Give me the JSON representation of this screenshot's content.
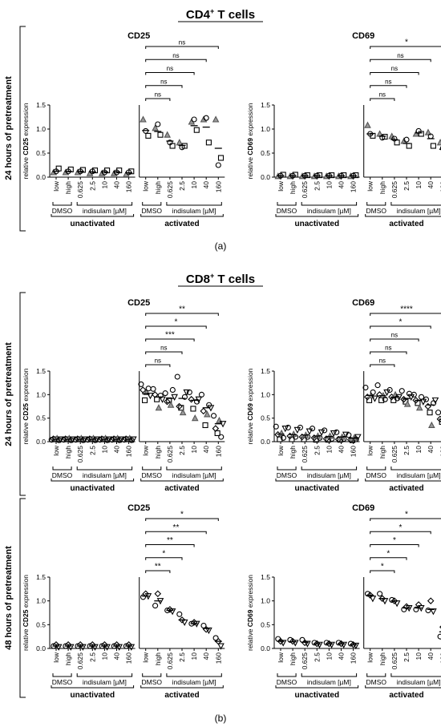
{
  "figure": {
    "panel_a_title": "CD4",
    "panel_a_title_sup": "+",
    "panel_a_title_rest": " T cells",
    "panel_b_title": "CD8",
    "panel_b_title_sup": "+",
    "panel_b_title_rest": " T cells",
    "label_a": "(a)",
    "label_b": "(b)",
    "row_label_24": "24 hours of pretreatment",
    "row_label_48": "48 hours of pretreatment"
  },
  "x_labels": {
    "categories": [
      "low",
      "high",
      "0.625",
      "2.5",
      "10",
      "40",
      "160"
    ],
    "dmso": "DMSO",
    "indisulam": "indisulam [µM]",
    "unactivated": "unactivated",
    "activated": "activated"
  },
  "chart_data": [
    {
      "id": "cd4-24h-cd25",
      "type": "scatter",
      "title": "CD25",
      "ylabel_pre": "relative ",
      "ylabel_bold": "CD25",
      "ylabel_post": " expression",
      "ylim": [
        0,
        1.5
      ],
      "yticks": [
        "0.0",
        "0.5",
        "1.0",
        "1.5"
      ],
      "markers": [
        "triangle",
        "circle",
        "square"
      ],
      "unactivated": {
        "means": [
          0.12,
          0.12,
          0.12,
          0.11,
          0.11,
          0.11,
          0.09
        ],
        "points": [
          [
            0.1,
            0.12,
            0.18
          ],
          [
            0.1,
            0.12,
            0.16
          ],
          [
            0.1,
            0.12,
            0.15
          ],
          [
            0.08,
            0.12,
            0.14
          ],
          [
            0.08,
            0.1,
            0.14
          ],
          [
            0.08,
            0.1,
            0.14
          ],
          [
            0.06,
            0.1,
            0.12
          ]
        ]
      },
      "activated": {
        "means": [
          0.97,
          0.95,
          0.75,
          0.66,
          1.07,
          1.04,
          0.6
        ],
        "points": [
          [
            1.2,
            0.96,
            0.86
          ],
          [
            1.02,
            1.1,
            0.88
          ],
          [
            0.88,
            0.72,
            0.65
          ],
          [
            0.72,
            0.62,
            0.65
          ],
          [
            1.15,
            1.2,
            0.98
          ],
          [
            1.2,
            1.23,
            0.72
          ],
          [
            1.2,
            0.25,
            0.4
          ]
        ]
      },
      "significance": [
        {
          "to": 1,
          "label": "ns"
        },
        {
          "to": 2,
          "label": "ns"
        },
        {
          "to": 3,
          "label": "ns"
        },
        {
          "to": 4,
          "label": "ns"
        },
        {
          "to": 5,
          "label": "ns"
        }
      ]
    },
    {
      "id": "cd4-24h-cd69",
      "type": "scatter",
      "title": "CD69",
      "ylabel_pre": "relative ",
      "ylabel_bold": "CD69",
      "ylabel_post": " expression",
      "ylim": [
        0,
        1.5
      ],
      "yticks": [
        "0.0",
        "0.5",
        "1.0",
        "1.5"
      ],
      "markers": [
        "triangle",
        "circle",
        "square"
      ],
      "unactivated": {
        "means": [
          0.03,
          0.03,
          0.03,
          0.03,
          0.03,
          0.03,
          0.03
        ],
        "points": [
          [
            0.02,
            0.03,
            0.05
          ],
          [
            0.02,
            0.03,
            0.05
          ],
          [
            0.02,
            0.03,
            0.04
          ],
          [
            0.02,
            0.03,
            0.04
          ],
          [
            0.02,
            0.03,
            0.04
          ],
          [
            0.02,
            0.03,
            0.04
          ],
          [
            0.02,
            0.03,
            0.04
          ]
        ]
      },
      "activated": {
        "means": [
          0.9,
          0.85,
          0.78,
          0.7,
          0.92,
          0.8,
          0.58
        ],
        "points": [
          [
            1.08,
            0.9,
            0.86
          ],
          [
            0.9,
            0.82,
            0.84
          ],
          [
            0.85,
            0.8,
            0.72
          ],
          [
            0.75,
            0.78,
            0.65
          ],
          [
            0.9,
            0.96,
            0.9
          ],
          [
            0.93,
            0.85,
            0.65
          ],
          [
            0.72,
            0.6,
            0.38
          ]
        ]
      },
      "significance": [
        {
          "to": 1,
          "label": "ns"
        },
        {
          "to": 2,
          "label": "ns"
        },
        {
          "to": 3,
          "label": "ns"
        },
        {
          "to": 4,
          "label": "ns"
        },
        {
          "to": 5,
          "label": "*"
        }
      ]
    },
    {
      "id": "cd8-24h-cd25",
      "type": "scatter",
      "title": "CD25",
      "ylabel_pre": "relative ",
      "ylabel_bold": "CD25",
      "ylabel_post": " expression",
      "ylim": [
        0,
        1.5
      ],
      "yticks": [
        "0.0",
        "0.5",
        "1.0",
        "1.5"
      ],
      "markers": [
        "circle",
        "diamond",
        "square",
        "triangle",
        "circle",
        "triangle-down"
      ],
      "unactivated": {
        "means": [
          0.05,
          0.05,
          0.05,
          0.05,
          0.05,
          0.05,
          0.05
        ],
        "points": [
          [
            0.04,
            0.06,
            0.05,
            0.07,
            0.03,
            0.05
          ],
          [
            0.04,
            0.06,
            0.05,
            0.07,
            0.03,
            0.05
          ],
          [
            0.04,
            0.06,
            0.05,
            0.07,
            0.03,
            0.05
          ],
          [
            0.04,
            0.06,
            0.05,
            0.07,
            0.03,
            0.05
          ],
          [
            0.04,
            0.06,
            0.05,
            0.07,
            0.03,
            0.05
          ],
          [
            0.04,
            0.06,
            0.05,
            0.07,
            0.03,
            0.05
          ],
          [
            0.04,
            0.06,
            0.05,
            0.07,
            0.03,
            0.05
          ]
        ]
      },
      "activated": {
        "means": [
          1.02,
          0.95,
          0.92,
          0.92,
          0.88,
          0.72,
          0.38
        ],
        "points": [
          [
            1.22,
            1.1,
            0.88,
            1.05,
            1.13,
            0.98
          ],
          [
            1.12,
            1.0,
            0.9,
            0.72,
            0.98,
            0.9
          ],
          [
            1.03,
            0.85,
            0.88,
            0.78,
            1.1,
            0.95
          ],
          [
            1.38,
            0.75,
            0.72,
            0.62,
            0.95,
            1.05
          ],
          [
            1.05,
            0.9,
            0.7,
            0.5,
            0.85,
            0.9
          ],
          [
            1.0,
            0.65,
            0.35,
            0.58,
            0.78,
            0.72
          ],
          [
            0.55,
            0.28,
            0.18,
            0.45,
            0.1,
            0.38
          ]
        ]
      },
      "significance": [
        {
          "to": 1,
          "label": "ns"
        },
        {
          "to": 2,
          "label": "ns"
        },
        {
          "to": 3,
          "label": "***"
        },
        {
          "to": 4,
          "label": "*"
        },
        {
          "to": 5,
          "label": "**"
        }
      ]
    },
    {
      "id": "cd8-24h-cd69",
      "type": "scatter",
      "title": "CD69",
      "ylabel_pre": "relative ",
      "ylabel_bold": "CD69",
      "ylabel_post": " expression",
      "ylim": [
        0,
        1.5
      ],
      "yticks": [
        "0.0",
        "0.5",
        "1.0",
        "1.5"
      ],
      "markers": [
        "circle",
        "diamond",
        "square",
        "triangle",
        "circle",
        "triangle-down"
      ],
      "unactivated": {
        "means": [
          0.16,
          0.15,
          0.14,
          0.12,
          0.11,
          0.1,
          0.07
        ],
        "points": [
          [
            0.32,
            0.15,
            0.05,
            0.18,
            0.08,
            0.28
          ],
          [
            0.3,
            0.12,
            0.05,
            0.16,
            0.1,
            0.25
          ],
          [
            0.3,
            0.1,
            0.05,
            0.14,
            0.1,
            0.22
          ],
          [
            0.28,
            0.08,
            0.04,
            0.12,
            0.08,
            0.2
          ],
          [
            0.24,
            0.06,
            0.04,
            0.12,
            0.06,
            0.18
          ],
          [
            0.2,
            0.05,
            0.04,
            0.1,
            0.06,
            0.15
          ],
          [
            0.14,
            0.04,
            0.03,
            0.08,
            0.05,
            0.1
          ]
        ]
      },
      "activated": {
        "means": [
          0.98,
          0.98,
          0.95,
          0.92,
          0.88,
          0.78,
          0.48
        ],
        "points": [
          [
            1.15,
            0.95,
            0.88,
            0.98,
            1.05,
            0.92
          ],
          [
            1.2,
            1.0,
            0.88,
            0.98,
            0.9,
            1.05
          ],
          [
            1.1,
            0.95,
            0.88,
            1.0,
            0.92,
            0.95
          ],
          [
            1.08,
            0.9,
            0.85,
            0.8,
            1.02,
            0.95
          ],
          [
            1.0,
            0.88,
            0.82,
            0.72,
            0.95,
            0.85
          ],
          [
            0.9,
            0.75,
            0.62,
            0.35,
            0.82,
            0.88
          ],
          [
            0.62,
            0.48,
            0.42,
            0.52,
            0.45,
            0.55
          ]
        ]
      },
      "significance": [
        {
          "to": 1,
          "label": "ns"
        },
        {
          "to": 2,
          "label": "ns"
        },
        {
          "to": 3,
          "label": "ns"
        },
        {
          "to": 4,
          "label": "*"
        },
        {
          "to": 5,
          "label": "****"
        }
      ]
    },
    {
      "id": "cd8-48h-cd25",
      "type": "scatter",
      "title": "CD25",
      "ylabel_pre": "relative ",
      "ylabel_bold": "CD25",
      "ylabel_post": " expression",
      "ylim": [
        0,
        1.5
      ],
      "yticks": [
        "0.0",
        "0.5",
        "1.0",
        "1.5"
      ],
      "markers": [
        "circle",
        "diamond",
        "triangle-down"
      ],
      "unactivated": {
        "means": [
          0.05,
          0.05,
          0.05,
          0.05,
          0.05,
          0.05,
          0.05
        ],
        "points": [
          [
            0.05,
            0.08,
            0.03
          ],
          [
            0.05,
            0.08,
            0.03
          ],
          [
            0.05,
            0.08,
            0.03
          ],
          [
            0.05,
            0.08,
            0.03
          ],
          [
            0.05,
            0.08,
            0.03
          ],
          [
            0.05,
            0.08,
            0.03
          ],
          [
            0.05,
            0.08,
            0.03
          ]
        ]
      },
      "activated": {
        "means": [
          1.1,
          1.0,
          0.8,
          0.6,
          0.52,
          0.42,
          0.15
        ],
        "points": [
          [
            1.08,
            1.15,
            1.1
          ],
          [
            0.9,
            1.15,
            1.0
          ],
          [
            0.8,
            0.82,
            0.78
          ],
          [
            0.72,
            0.6,
            0.55
          ],
          [
            0.52,
            0.55,
            0.52
          ],
          [
            0.48,
            0.4,
            0.38
          ],
          [
            0.22,
            0.15,
            0.05
          ]
        ]
      },
      "significance": [
        {
          "to": 1,
          "label": "**"
        },
        {
          "to": 2,
          "label": "*"
        },
        {
          "to": 3,
          "label": "**"
        },
        {
          "to": 4,
          "label": "**"
        },
        {
          "to": 5,
          "label": "*"
        }
      ]
    },
    {
      "id": "cd8-48h-cd69",
      "type": "scatter",
      "title": "CD69",
      "ylabel_pre": "relative ",
      "ylabel_bold": "CD69",
      "ylabel_post": " expression",
      "ylim": [
        0,
        1.5
      ],
      "yticks": [
        "0.0",
        "0.5",
        "1.0",
        "1.5"
      ],
      "markers": [
        "circle",
        "diamond",
        "triangle-down"
      ],
      "unactivated": {
        "means": [
          0.15,
          0.14,
          0.13,
          0.1,
          0.1,
          0.1,
          0.08
        ],
        "points": [
          [
            0.2,
            0.15,
            0.12
          ],
          [
            0.18,
            0.15,
            0.12
          ],
          [
            0.18,
            0.12,
            0.1
          ],
          [
            0.12,
            0.1,
            0.08
          ],
          [
            0.12,
            0.1,
            0.08
          ],
          [
            0.12,
            0.1,
            0.08
          ],
          [
            0.1,
            0.08,
            0.06
          ]
        ]
      },
      "activated": {
        "means": [
          1.12,
          1.05,
          1.0,
          0.85,
          0.85,
          0.82,
          0.35
        ],
        "points": [
          [
            1.15,
            1.12,
            1.05
          ],
          [
            1.15,
            1.05,
            1.0
          ],
          [
            1.02,
            1.0,
            0.95
          ],
          [
            0.82,
            0.88,
            0.85
          ],
          [
            0.82,
            0.92,
            0.85
          ],
          [
            0.8,
            1.0,
            0.78
          ],
          [
            0.25,
            0.45,
            0.35
          ]
        ]
      },
      "significance": [
        {
          "to": 1,
          "label": "*"
        },
        {
          "to": 2,
          "label": "*"
        },
        {
          "to": 3,
          "label": "*"
        },
        {
          "to": 4,
          "label": "*"
        },
        {
          "to": 5,
          "label": "*"
        }
      ]
    }
  ]
}
